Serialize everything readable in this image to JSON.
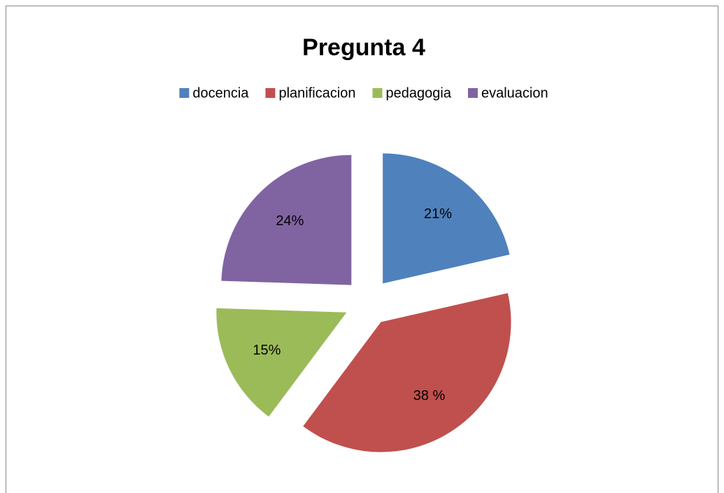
{
  "chart_data": {
    "type": "pie",
    "title": "Pregunta 4",
    "categories": [
      "docencia",
      "planificacion",
      "pedagogia",
      "evaluacion"
    ],
    "values": [
      21,
      38,
      15,
      24
    ],
    "value_labels": [
      "21%",
      "38 %",
      "15%",
      "24%"
    ],
    "colors": [
      "#4f81bd",
      "#c0504d",
      "#9bbb59",
      "#8064a2"
    ],
    "legend": "top"
  }
}
